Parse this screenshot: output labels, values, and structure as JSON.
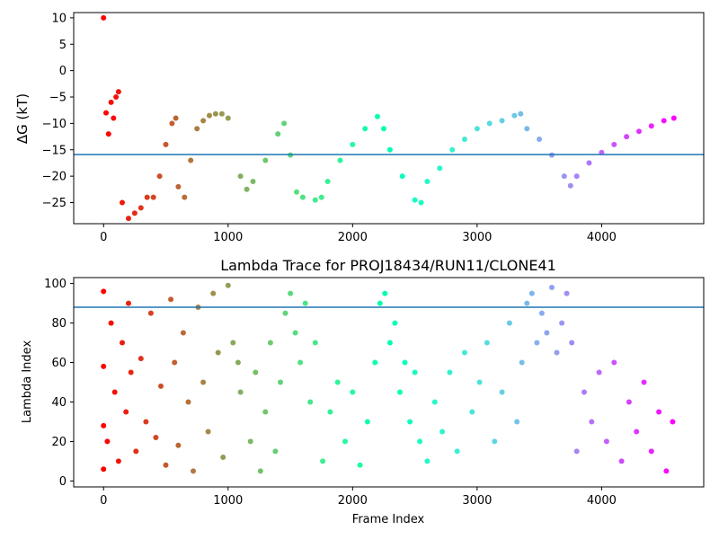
{
  "chart_data": [
    {
      "type": "scatter",
      "title": "",
      "xlabel": "",
      "ylabel": "ΔG (kT)",
      "xlim": [
        -240,
        4820
      ],
      "ylim": [
        -29,
        11
      ],
      "xticks": [
        0,
        1000,
        2000,
        3000,
        4000
      ],
      "xtick_labels": [
        "0",
        "1000",
        "2000",
        "3000",
        "4000"
      ],
      "yticks": [
        10,
        5,
        0,
        -5,
        -10,
        -15,
        -20,
        -25
      ],
      "ytick_labels": [
        "10",
        "5",
        "0",
        "−5",
        "−10",
        "−15",
        "−20",
        "−25"
      ],
      "hline": -15.9,
      "hline_color": "#1f77b4",
      "colormap": "rainbow",
      "grid": false,
      "legend": "none",
      "series": [
        {
          "x": [
            0,
            20,
            40,
            60,
            80,
            100,
            120,
            150,
            200,
            250,
            300,
            350,
            400,
            450,
            500,
            550,
            580,
            600,
            650,
            700,
            750,
            800,
            850,
            900,
            950,
            1000,
            1100,
            1150,
            1200,
            1300,
            1400,
            1450,
            1500,
            1550,
            1600,
            1700,
            1750,
            1800,
            1900,
            2000,
            2100,
            2200,
            2250,
            2300,
            2400,
            2500,
            2550,
            2600,
            2700,
            2800,
            2900,
            3000,
            3100,
            3200,
            3300,
            3350,
            3400,
            3500,
            3600,
            3700,
            3750,
            3800,
            3900,
            4000,
            4100,
            4200,
            4300,
            4400,
            4500,
            4580
          ],
          "y": [
            10,
            -8,
            -12,
            -6,
            -9,
            -5,
            -4,
            -25,
            -28,
            -27,
            -26,
            -24,
            -24,
            -20,
            -14,
            -10,
            -9,
            -22,
            -24,
            -17,
            -11,
            -9.5,
            -8.5,
            -8.2,
            -8.2,
            -9,
            -20,
            -22.5,
            -21,
            -17,
            -12,
            -10,
            -16,
            -23,
            -24,
            -24.5,
            -24,
            -21,
            -17,
            -14,
            -11,
            -8.7,
            -11,
            -15,
            -20,
            -24.5,
            -25,
            -21,
            -18.5,
            -15,
            -13,
            -11,
            -10,
            -9.5,
            -8.5,
            -8.2,
            -11,
            -13,
            -16,
            -20,
            -21.8,
            -20,
            -17.5,
            -15.5,
            -14,
            -12.5,
            -11.5,
            -10.5,
            -9.5,
            -9
          ]
        }
      ]
    },
    {
      "type": "scatter",
      "title": "Lambda Trace for PROJ18434/RUN11/CLONE41",
      "xlabel": "Frame Index",
      "ylabel": "Lambda Index",
      "xlim": [
        -240,
        4820
      ],
      "ylim": [
        -3,
        103
      ],
      "xticks": [
        0,
        1000,
        2000,
        3000,
        4000
      ],
      "xtick_labels": [
        "0",
        "1000",
        "2000",
        "3000",
        "4000"
      ],
      "yticks": [
        0,
        20,
        40,
        60,
        80,
        100
      ],
      "ytick_labels": [
        "0",
        "20",
        "40",
        "60",
        "80",
        "100"
      ],
      "hline": 88,
      "hline_color": "#1f77b4",
      "colormap": "rainbow",
      "grid": false,
      "legend": "none",
      "series": [
        {
          "x": [
            0,
            0,
            0,
            0,
            30,
            60,
            90,
            120,
            150,
            180,
            200,
            220,
            260,
            300,
            340,
            380,
            420,
            460,
            500,
            540,
            570,
            600,
            640,
            680,
            720,
            760,
            800,
            840,
            880,
            920,
            960,
            1000,
            1040,
            1080,
            1100,
            1180,
            1220,
            1260,
            1300,
            1340,
            1380,
            1420,
            1460,
            1500,
            1540,
            1580,
            1620,
            1660,
            1700,
            1760,
            1820,
            1880,
            1940,
            2000,
            2060,
            2120,
            2180,
            2220,
            2260,
            2300,
            2340,
            2380,
            2420,
            2460,
            2500,
            2540,
            2600,
            2660,
            2720,
            2780,
            2840,
            2900,
            2960,
            3020,
            3080,
            3140,
            3200,
            3260,
            3320,
            3360,
            3400,
            3440,
            3480,
            3520,
            3560,
            3600,
            3640,
            3680,
            3720,
            3760,
            3800,
            3860,
            3920,
            3980,
            4040,
            4100,
            4160,
            4220,
            4280,
            4340,
            4400,
            4460,
            4520,
            4570
          ],
          "y": [
            6,
            28,
            58,
            96,
            20,
            80,
            45,
            10,
            70,
            35,
            90,
            55,
            15,
            62,
            30,
            85,
            22,
            48,
            8,
            92,
            60,
            18,
            75,
            40,
            5,
            88,
            50,
            25,
            95,
            65,
            12,
            99,
            70,
            60,
            45,
            20,
            55,
            5,
            35,
            70,
            15,
            50,
            85,
            95,
            75,
            60,
            90,
            40,
            70,
            10,
            35,
            50,
            20,
            45,
            8,
            30,
            60,
            90,
            95,
            70,
            80,
            45,
            60,
            30,
            55,
            20,
            10,
            40,
            25,
            55,
            15,
            65,
            35,
            50,
            70,
            20,
            45,
            80,
            30,
            60,
            90,
            95,
            70,
            85,
            75,
            98,
            65,
            80,
            95,
            70,
            15,
            45,
            30,
            55,
            20,
            60,
            10,
            40,
            25,
            50,
            15,
            35,
            5,
            30
          ]
        }
      ]
    }
  ]
}
